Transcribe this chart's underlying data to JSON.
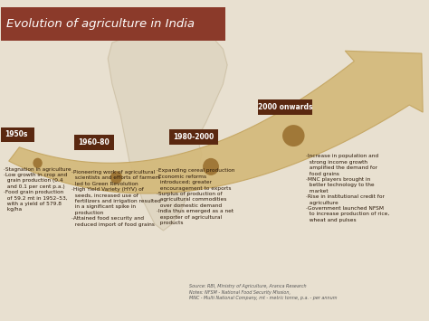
{
  "title": "Evolution of agriculture in India",
  "title_bg": "#8B3A2A",
  "title_color": "#ffffff",
  "bg_color": "#e8e0d0",
  "arrow_color": "#d4b97a",
  "arrow_edge": "#c4a560",
  "dot_color": "#a07838",
  "label_bg": "#5a2810",
  "label_color": "#ffffff",
  "text_color": "#2a1808",
  "source_color": "#555555",
  "bullet_texts_0": [
    "·Stagnation in agriculture",
    "·Low growth in crop and",
    "  grain production (0.4",
    "  and 0.1 per cent p.a.)",
    "·Food grain production",
    "  of 59.2 mt in 1952–53,",
    "  with a yield of 579.8",
    "  kg/ha"
  ],
  "bullet_texts_1": [
    "·Pioneering work of agricultural",
    "  scientists and efforts of farmers",
    "  led to Green Revolution",
    "·High Yield Variety (HYV) of",
    "  seeds, increased use of",
    "  fertilizers and irrigation resulted",
    "  in a significant spike in",
    "  production",
    "·Attained food security and",
    "  reduced import of food grains"
  ],
  "bullet_texts_2": [
    "·Expanding cereal production",
    "·Economic reforms",
    "  introduced; greater",
    "  encouragement to exports",
    "·Surplus of production of",
    "  agricultural commodities",
    "  over domestic demand",
    "·India thus emerged as a net",
    "  exporter of agricultural",
    "  products"
  ],
  "bullet_texts_3": [
    "·Increase in population and",
    "  strong income growth",
    "  amplified the demand for",
    "  food grains",
    "·MNC players brought in",
    "  better technology to the",
    "  market",
    "·Rise in institutional credit for",
    "  agriculture",
    "·Government launched NFSM",
    "  to increase production of rice,",
    "  wheat and pulses"
  ],
  "source_text": "Source: RBI, Ministry of Agriculture, Aranca Research\nNotes: NFSM - National Food Security Mission,\nMNC - Multi National Company, mt - metric tonne, p.a. - per annum"
}
